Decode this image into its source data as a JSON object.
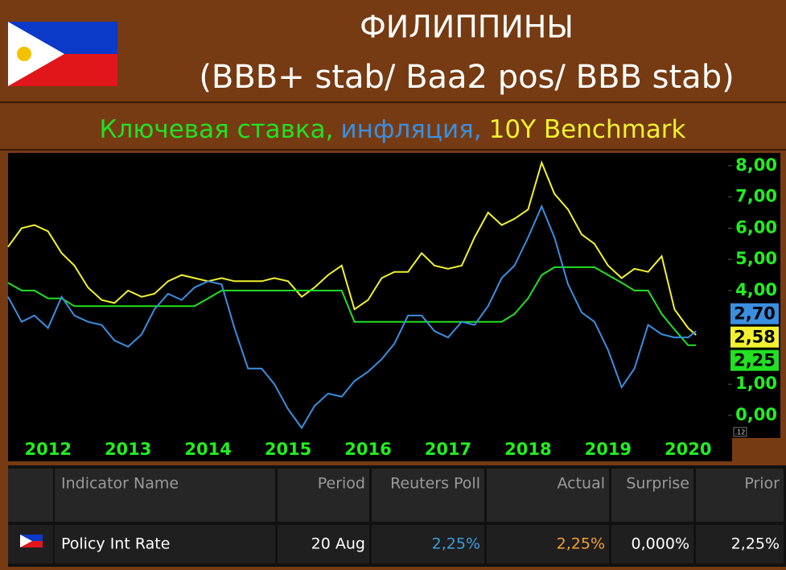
{
  "header": {
    "title": "ФИЛИППИНЫ",
    "ratings": "(BBB+ stab/ Baa2 pos/ BBB stab)"
  },
  "chart_data": {
    "type": "line",
    "x": [
      2012,
      2012.17,
      2012.33,
      2012.5,
      2012.67,
      2012.83,
      2013,
      2013.17,
      2013.33,
      2013.5,
      2013.67,
      2013.83,
      2014,
      2014.17,
      2014.33,
      2014.5,
      2014.67,
      2014.83,
      2015,
      2015.17,
      2015.33,
      2015.5,
      2015.67,
      2015.83,
      2016,
      2016.17,
      2016.33,
      2016.5,
      2016.67,
      2016.83,
      2017,
      2017.17,
      2017.33,
      2017.5,
      2017.67,
      2017.83,
      2018,
      2018.17,
      2018.33,
      2018.5,
      2018.67,
      2018.83,
      2019,
      2019.17,
      2019.33,
      2019.5,
      2019.67,
      2019.83,
      2020,
      2020.17,
      2020.33,
      2020.5,
      2020.6
    ],
    "series": [
      {
        "name": "Ключевая ставка,",
        "color": "#22e022",
        "end_label": "2,25",
        "values": [
          4.25,
          4.0,
          4.0,
          3.75,
          3.75,
          3.5,
          3.5,
          3.5,
          3.5,
          3.5,
          3.5,
          3.5,
          3.5,
          3.5,
          3.5,
          3.75,
          4.0,
          4.0,
          4.0,
          4.0,
          4.0,
          4.0,
          4.0,
          4.0,
          4.0,
          4.0,
          3.0,
          3.0,
          3.0,
          3.0,
          3.0,
          3.0,
          3.0,
          3.0,
          3.0,
          3.0,
          3.0,
          3.0,
          3.25,
          3.75,
          4.5,
          4.75,
          4.75,
          4.75,
          4.75,
          4.5,
          4.25,
          4.0,
          4.0,
          3.25,
          2.75,
          2.25,
          2.25
        ]
      },
      {
        "name": "инфляция,",
        "color": "#3a8fe0",
        "end_label": "2,70",
        "values": [
          3.8,
          3.0,
          3.2,
          2.8,
          3.8,
          3.2,
          3.0,
          2.9,
          2.4,
          2.2,
          2.6,
          3.4,
          3.9,
          3.7,
          4.1,
          4.3,
          4.2,
          2.8,
          1.5,
          1.5,
          1.0,
          0.2,
          -0.4,
          0.3,
          0.7,
          0.6,
          1.1,
          1.4,
          1.8,
          2.3,
          3.2,
          3.2,
          2.7,
          2.5,
          3.0,
          2.9,
          3.5,
          4.4,
          4.8,
          5.7,
          6.7,
          5.7,
          4.2,
          3.3,
          3.0,
          2.1,
          0.9,
          1.5,
          2.9,
          2.6,
          2.5,
          2.5,
          2.7
        ]
      },
      {
        "name": "10Y Benchmark",
        "color": "#f2f230",
        "end_label": "2,58",
        "values": [
          5.4,
          6.0,
          6.1,
          5.9,
          5.2,
          4.8,
          4.1,
          3.7,
          3.6,
          4.0,
          3.8,
          3.9,
          4.3,
          4.5,
          4.4,
          4.3,
          4.4,
          4.3,
          4.3,
          4.3,
          4.4,
          4.3,
          3.8,
          4.1,
          4.5,
          4.8,
          3.4,
          3.7,
          4.4,
          4.6,
          4.6,
          5.2,
          4.8,
          4.7,
          4.8,
          5.7,
          6.5,
          6.1,
          6.3,
          6.6,
          8.1,
          7.1,
          6.6,
          5.8,
          5.5,
          4.8,
          4.4,
          4.7,
          4.6,
          5.1,
          3.4,
          2.8,
          2.58
        ]
      }
    ],
    "xlim": [
      2012,
      2021
    ],
    "xticks": [
      {
        "value": 2012.5,
        "label": "2012"
      },
      {
        "value": 2013.5,
        "label": "2013"
      },
      {
        "value": 2014.5,
        "label": "2014"
      },
      {
        "value": 2015.5,
        "label": "2015"
      },
      {
        "value": 2016.5,
        "label": "2016"
      },
      {
        "value": 2017.5,
        "label": "2017"
      },
      {
        "value": 2018.5,
        "label": "2018"
      },
      {
        "value": 2019.5,
        "label": "2019"
      },
      {
        "value": 2020.5,
        "label": "2020"
      }
    ],
    "ylim": [
      -0.62,
      8.41
    ],
    "yticks": [
      {
        "value": 0,
        "label": "0,00"
      },
      {
        "value": 1,
        "label": "1,00"
      },
      {
        "value": 4,
        "label": "4,00"
      },
      {
        "value": 5,
        "label": "5,00"
      },
      {
        "value": 6,
        "label": "6,00"
      },
      {
        "value": 7,
        "label": "7,00"
      },
      {
        "value": 8,
        "label": "8,00"
      }
    ],
    "corner_note": ".12"
  },
  "table": {
    "columns": [
      "Indicator Name",
      "Period",
      "Reuters Poll",
      "Actual",
      "Surprise",
      "Prior"
    ],
    "rows": [
      [
        "Policy Int Rate",
        "20 Aug",
        "2,25%",
        "2,25%",
        "0,000%",
        "2,25%"
      ]
    ]
  }
}
